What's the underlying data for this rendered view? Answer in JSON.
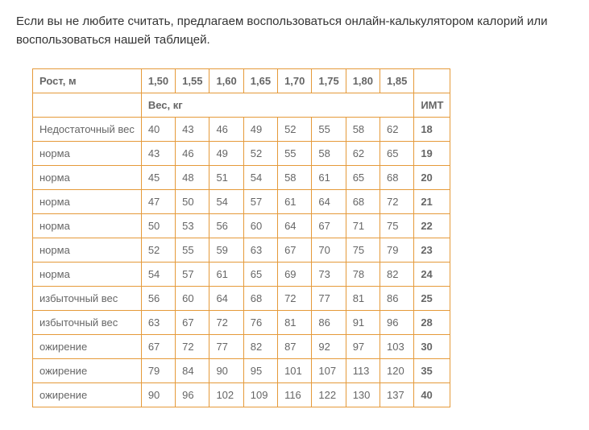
{
  "intro_text": "Если вы не любите считать, предлагаем воспользоваться онлайн-калькулятором калорий или воспользоваться нашей таблицей.",
  "table": {
    "type": "table",
    "header_label": "Рост, м",
    "heights": [
      "1,50",
      "1,55",
      "1,60",
      "1,65",
      "1,70",
      "1,75",
      "1,80",
      "1,85"
    ],
    "weight_label": "Вес, кг",
    "imt_label": "ИМТ",
    "border_color": "#e59a3a",
    "text_color": "#666666",
    "background_color": "#ffffff",
    "font_size": 13,
    "rows": [
      {
        "label": "Недостаточный вес",
        "values": [
          "40",
          "43",
          "46",
          "49",
          "52",
          "55",
          "58",
          "62"
        ],
        "imt": "18"
      },
      {
        "label": "норма",
        "values": [
          "43",
          "46",
          "49",
          "52",
          "55",
          "58",
          "62",
          "65"
        ],
        "imt": "19"
      },
      {
        "label": "норма",
        "values": [
          "45",
          "48",
          "51",
          "54",
          "58",
          "61",
          "65",
          "68"
        ],
        "imt": "20"
      },
      {
        "label": "норма",
        "values": [
          "47",
          "50",
          "54",
          "57",
          "61",
          "64",
          "68",
          "72"
        ],
        "imt": "21"
      },
      {
        "label": "норма",
        "values": [
          "50",
          "53",
          "56",
          "60",
          "64",
          "67",
          "71",
          "75"
        ],
        "imt": "22"
      },
      {
        "label": "норма",
        "values": [
          "52",
          "55",
          "59",
          "63",
          "67",
          "70",
          "75",
          "79"
        ],
        "imt": "23"
      },
      {
        "label": "норма",
        "values": [
          "54",
          "57",
          "61",
          "65",
          "69",
          "73",
          "78",
          "82"
        ],
        "imt": "24"
      },
      {
        "label": "избыточный вес",
        "values": [
          "56",
          "60",
          "64",
          "68",
          "72",
          "77",
          "81",
          "86"
        ],
        "imt": "25"
      },
      {
        "label": "избыточный вес",
        "values": [
          "63",
          "67",
          "72",
          "76",
          "81",
          "86",
          "91",
          "96"
        ],
        "imt": "28"
      },
      {
        "label": "ожирение",
        "values": [
          "67",
          "72",
          "77",
          "82",
          "87",
          "92",
          "97",
          "103"
        ],
        "imt": "30"
      },
      {
        "label": "ожирение",
        "values": [
          "79",
          "84",
          "90",
          "95",
          "101",
          "107",
          "113",
          "120"
        ],
        "imt": "35"
      },
      {
        "label": "ожирение",
        "values": [
          "90",
          "96",
          "102",
          "109",
          "116",
          "122",
          "130",
          "137"
        ],
        "imt": "40"
      }
    ]
  }
}
